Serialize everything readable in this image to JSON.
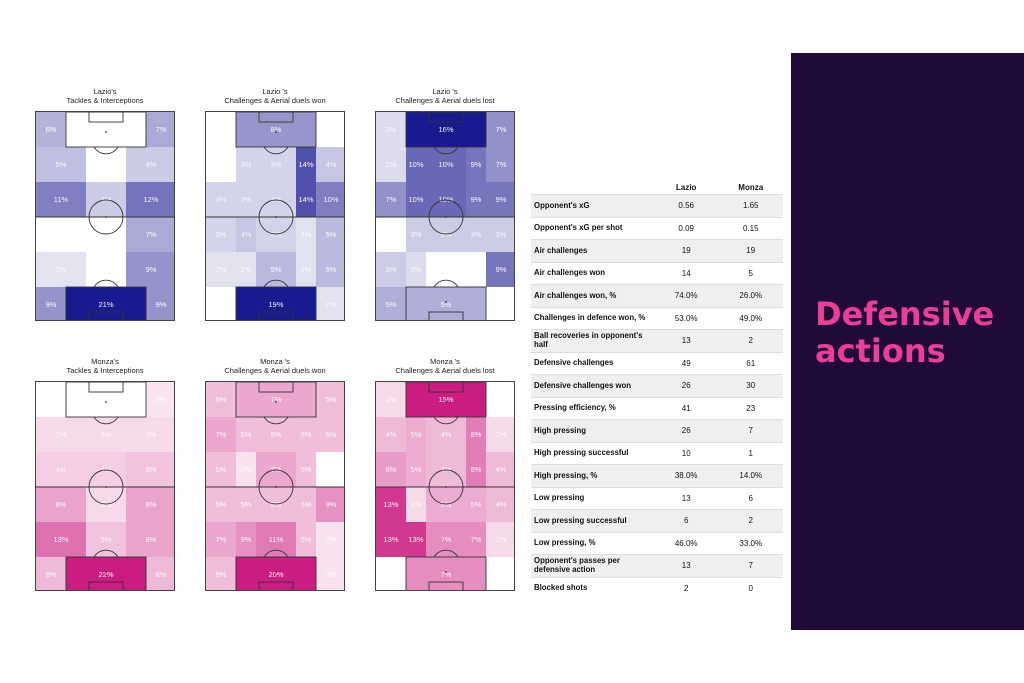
{
  "chart_data": [
    {
      "type": "heatmap",
      "title": "Lazio's\nTackles & Interceptions",
      "theme": "purple",
      "grid": [
        [
          {
            "v": 6
          },
          {
            "v": 0
          },
          {
            "v": 7
          }
        ],
        [
          {
            "v": 5
          },
          {
            "v": 0
          },
          {
            "v": 4
          }
        ],
        [
          {
            "v": 11
          },
          {
            "v": 4
          },
          {
            "v": 12
          }
        ],
        [
          {
            "v": 0
          },
          {
            "v": 0
          },
          {
            "v": 7
          }
        ],
        [
          {
            "v": 2
          },
          {
            "v": 0
          },
          {
            "v": 9
          }
        ],
        [
          {
            "v": 9
          },
          {
            "v": 21
          },
          {
            "v": 9
          }
        ]
      ]
    },
    {
      "type": "heatmap",
      "title": "Lazio 's\nChallenges & Aerial duels won",
      "theme": "purple",
      "grid": [
        [
          {
            "v": 0
          },
          {
            "v": 8
          },
          {
            "v": 0
          }
        ],
        [
          {
            "v": 0
          },
          {
            "v": 3
          },
          {
            "v": 3
          },
          {
            "v": 14
          },
          {
            "v": 4
          }
        ],
        [
          {
            "v": 3
          },
          {
            "v": 3
          },
          {
            "v": 3
          },
          {
            "v": 14
          },
          {
            "v": 10
          }
        ],
        [
          {
            "v": 3
          },
          {
            "v": 4
          },
          {
            "v": 3
          },
          {
            "v": 2
          },
          {
            "v": 5
          }
        ],
        [
          {
            "v": 2
          },
          {
            "v": 2
          },
          {
            "v": 5
          },
          {
            "v": 2
          },
          {
            "v": 5
          }
        ],
        [
          {
            "v": 0
          },
          {
            "v": 19
          },
          {
            "v": 2
          }
        ]
      ]
    },
    {
      "type": "heatmap",
      "title": "Lazio 's\nChallenges & Aerial duels lost",
      "theme": "purple",
      "grid": [
        [
          {
            "v": 2
          },
          {
            "v": 16
          },
          {
            "v": 7
          }
        ],
        [
          {
            "v": 2
          },
          {
            "v": 10
          },
          {
            "v": 10
          },
          {
            "v": 9
          },
          {
            "v": 7
          }
        ],
        [
          {
            "v": 7
          },
          {
            "v": 10
          },
          {
            "v": 10
          },
          {
            "v": 9
          },
          {
            "v": 9
          }
        ],
        [
          {
            "v": 0
          },
          {
            "v": 3
          },
          {
            "v": 3
          },
          {
            "v": 3
          },
          {
            "v": 3
          }
        ],
        [
          {
            "v": 3
          },
          {
            "v": 2
          },
          {
            "v": 0
          },
          {
            "v": 0
          },
          {
            "v": 9
          }
        ],
        [
          {
            "v": 5
          },
          {
            "v": 5
          },
          {
            "v": 0
          }
        ]
      ]
    },
    {
      "type": "heatmap",
      "title": "Monza's\nTackles & Interceptions",
      "theme": "pink",
      "grid": [
        [
          {
            "v": 0
          },
          {
            "v": 0
          },
          {
            "v": 2
          }
        ],
        [
          {
            "v": 3
          },
          {
            "v": 3
          },
          {
            "v": 3
          }
        ],
        [
          {
            "v": 4
          },
          {
            "v": 4
          },
          {
            "v": 5
          }
        ],
        [
          {
            "v": 8
          },
          {
            "v": 3
          },
          {
            "v": 8
          }
        ],
        [
          {
            "v": 13
          },
          {
            "v": 5
          },
          {
            "v": 8
          }
        ],
        [
          {
            "v": 6
          },
          {
            "v": 22
          },
          {
            "v": 6
          }
        ]
      ]
    },
    {
      "type": "heatmap",
      "title": "Monza 's\nChallenges & Aerial duels won",
      "theme": "pink",
      "grid": [
        [
          {
            "v": 5
          },
          {
            "v": 7
          },
          {
            "v": 5
          }
        ],
        [
          {
            "v": 7
          },
          {
            "v": 5
          },
          {
            "v": 5
          },
          {
            "v": 5
          },
          {
            "v": 5
          }
        ],
        [
          {
            "v": 5
          },
          {
            "v": 2
          },
          {
            "v": 7
          },
          {
            "v": 5
          },
          {
            "v": 0
          }
        ],
        [
          {
            "v": 5
          },
          {
            "v": 5
          },
          {
            "v": 5
          },
          {
            "v": 5
          },
          {
            "v": 9
          }
        ],
        [
          {
            "v": 7
          },
          {
            "v": 9
          },
          {
            "v": 11
          },
          {
            "v": 5
          },
          {
            "v": 2
          }
        ],
        [
          {
            "v": 5
          },
          {
            "v": 20
          },
          {
            "v": 2
          }
        ]
      ]
    },
    {
      "type": "heatmap",
      "title": "Monza 's\nChallenges & Aerial duels lost",
      "theme": "pink",
      "grid": [
        [
          {
            "v": 2
          },
          {
            "v": 15
          },
          {
            "v": 0
          }
        ],
        [
          {
            "v": 4
          },
          {
            "v": 5
          },
          {
            "v": 4
          },
          {
            "v": 8
          },
          {
            "v": 2
          }
        ],
        [
          {
            "v": 6
          },
          {
            "v": 5
          },
          {
            "v": 4
          },
          {
            "v": 8
          },
          {
            "v": 4
          }
        ],
        [
          {
            "v": 13
          },
          {
            "v": 2
          },
          {
            "v": 5
          },
          {
            "v": 5
          },
          {
            "v": 4
          }
        ],
        [
          {
            "v": 13
          },
          {
            "v": 13
          },
          {
            "v": 7
          },
          {
            "v": 7
          },
          {
            "v": 2
          }
        ],
        [
          {
            "v": 0
          },
          {
            "v": 7
          },
          {
            "v": 0
          }
        ]
      ]
    }
  ],
  "colors": {
    "purple": "#0d0d8a",
    "pink": "#c8117a",
    "panel_bg": "#1f0a3a",
    "panel_text": "#ec3d97"
  },
  "stats_table": {
    "headers": [
      "",
      "Lazio",
      "Monza"
    ],
    "rows": [
      [
        "Opponent's xG",
        "0.56",
        "1.65"
      ],
      [
        "Opponent's xG per shot",
        "0.09",
        "0.15"
      ],
      [
        "Air challenges",
        "19",
        "19"
      ],
      [
        "Air challenges won",
        "14",
        "5"
      ],
      [
        "Air challenges won, %",
        "74.0%",
        "26.0%"
      ],
      [
        "Challenges in defence won, %",
        "53.0%",
        "49.0%"
      ],
      [
        "Ball recoveries in opponent's half",
        "13",
        "2"
      ],
      [
        "Defensive challenges",
        "49",
        "61"
      ],
      [
        "Defensive challenges won",
        "26",
        "30"
      ],
      [
        "Pressing efficiency, %",
        "41",
        "23"
      ],
      [
        "High pressing",
        "26",
        "7"
      ],
      [
        "High pressing successful",
        "10",
        "1"
      ],
      [
        "High pressing, %",
        "38.0%",
        "14.0%"
      ],
      [
        "Low pressing",
        "13",
        "6"
      ],
      [
        "Low pressing successful",
        "6",
        "2"
      ],
      [
        "Low pressing, %",
        "46.0%",
        "33.0%"
      ],
      [
        "Opponent's passes per defensive action",
        "13",
        "7"
      ],
      [
        "Blocked shots",
        "2",
        "0"
      ]
    ]
  },
  "panel": {
    "title": "Defensive\nactions"
  }
}
